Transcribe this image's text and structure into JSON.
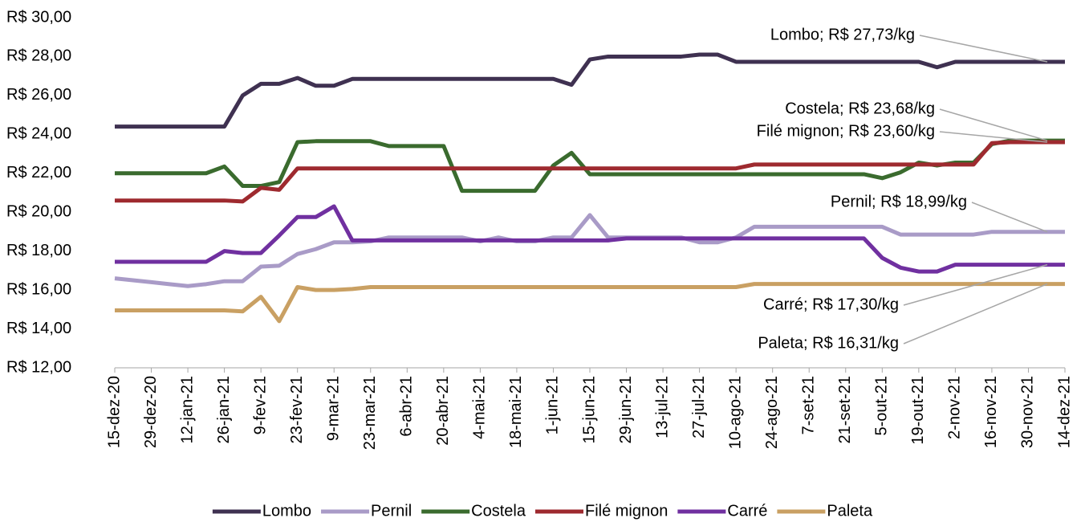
{
  "chart_data": {
    "type": "line",
    "categories": [
      "15-dez-20",
      null,
      "29-dez-20",
      null,
      "12-jan-21",
      null,
      "26-jan-21",
      null,
      "9-fev-21",
      null,
      "23-fev-21",
      null,
      "9-mar-21",
      null,
      "23-mar-21",
      null,
      "6-abr-21",
      null,
      "20-abr-21",
      null,
      "4-mai-21",
      null,
      "18-mai-21",
      null,
      "1-jun-21",
      null,
      "15-jun-21",
      null,
      "29-jun-21",
      null,
      "13-jul-21",
      null,
      "27-jul-21",
      null,
      "10-ago-21",
      null,
      "24-ago-21",
      null,
      "7-set-21",
      null,
      "21-set-21",
      null,
      "5-out-21",
      null,
      "19-out-21",
      null,
      "2-nov-21",
      null,
      "16-nov-21",
      null,
      "30-nov-21",
      null,
      "14-dez-21"
    ],
    "ylim": [
      12,
      30
    ],
    "yticks": [
      {
        "value": 12,
        "label": "R$ 12,00"
      },
      {
        "value": 14,
        "label": "R$ 14,00"
      },
      {
        "value": 16,
        "label": "R$ 16,00"
      },
      {
        "value": 18,
        "label": "R$ 18,00"
      },
      {
        "value": 20,
        "label": "R$ 20,00"
      },
      {
        "value": 22,
        "label": "R$ 22,00"
      },
      {
        "value": 24,
        "label": "R$ 24,00"
      },
      {
        "value": 26,
        "label": "R$ 26,00"
      },
      {
        "value": 28,
        "label": "R$ 28,00"
      },
      {
        "value": 30,
        "label": "R$ 30,00"
      }
    ],
    "grid": false,
    "legend": "bottom",
    "series": [
      {
        "name": "Lombo",
        "color": "#3f3151",
        "values": [
          24.4,
          24.4,
          24.4,
          24.4,
          24.4,
          24.4,
          24.4,
          26.0,
          26.6,
          26.6,
          26.9,
          26.5,
          26.5,
          26.85,
          26.85,
          26.85,
          26.85,
          26.85,
          26.85,
          26.85,
          26.85,
          26.85,
          26.85,
          26.85,
          26.85,
          26.55,
          27.85,
          28.0,
          28.0,
          28.0,
          28.0,
          28.0,
          28.1,
          28.1,
          27.73,
          27.73,
          27.73,
          27.73,
          27.73,
          27.73,
          27.73,
          27.73,
          27.73,
          27.73,
          27.73,
          27.45,
          27.73,
          27.73,
          27.73,
          27.73,
          27.73,
          27.73,
          27.73
        ]
      },
      {
        "name": "Pernil",
        "color": "#a99bc7",
        "values": [
          16.6,
          16.5,
          16.4,
          16.3,
          16.2,
          16.3,
          16.45,
          16.45,
          17.2,
          17.25,
          17.85,
          18.1,
          18.45,
          18.45,
          18.5,
          18.7,
          18.7,
          18.7,
          18.7,
          18.7,
          18.5,
          18.7,
          18.5,
          18.5,
          18.7,
          18.7,
          19.85,
          18.7,
          18.7,
          18.7,
          18.7,
          18.7,
          18.45,
          18.45,
          18.7,
          19.25,
          19.25,
          19.25,
          19.25,
          19.25,
          19.25,
          19.25,
          19.25,
          18.85,
          18.85,
          18.85,
          18.85,
          18.85,
          18.99,
          18.99,
          18.99,
          18.99,
          18.99
        ]
      },
      {
        "name": "Costela",
        "color": "#3a6b2e",
        "values": [
          22.0,
          22.0,
          22.0,
          22.0,
          22.0,
          22.0,
          22.35,
          21.35,
          21.35,
          21.55,
          23.6,
          23.65,
          23.65,
          23.65,
          23.65,
          23.4,
          23.4,
          23.4,
          23.4,
          21.1,
          21.1,
          21.1,
          21.1,
          21.1,
          22.4,
          23.05,
          21.95,
          21.95,
          21.95,
          21.95,
          21.95,
          21.95,
          21.95,
          21.95,
          21.95,
          21.95,
          21.95,
          21.95,
          21.95,
          21.95,
          21.95,
          21.95,
          21.75,
          22.05,
          22.55,
          22.4,
          22.55,
          22.55,
          23.5,
          23.68,
          23.68,
          23.68,
          23.68
        ]
      },
      {
        "name": "Filé mignon",
        "color": "#9e2a2f",
        "values": [
          20.6,
          20.6,
          20.6,
          20.6,
          20.6,
          20.6,
          20.6,
          20.55,
          21.25,
          21.15,
          22.25,
          22.25,
          22.25,
          22.25,
          22.25,
          22.25,
          22.25,
          22.25,
          22.25,
          22.25,
          22.25,
          22.25,
          22.25,
          22.25,
          22.25,
          22.25,
          22.25,
          22.25,
          22.25,
          22.25,
          22.25,
          22.25,
          22.25,
          22.25,
          22.25,
          22.45,
          22.45,
          22.45,
          22.45,
          22.45,
          22.45,
          22.45,
          22.45,
          22.45,
          22.45,
          22.45,
          22.45,
          22.45,
          23.55,
          23.6,
          23.6,
          23.6,
          23.6
        ]
      },
      {
        "name": "Carré",
        "color": "#7030a0",
        "values": [
          17.45,
          17.45,
          17.45,
          17.45,
          17.45,
          17.45,
          18.0,
          17.9,
          17.9,
          18.8,
          19.75,
          19.75,
          20.3,
          18.55,
          18.55,
          18.55,
          18.55,
          18.55,
          18.55,
          18.55,
          18.55,
          18.55,
          18.55,
          18.55,
          18.55,
          18.55,
          18.55,
          18.55,
          18.65,
          18.65,
          18.65,
          18.65,
          18.65,
          18.65,
          18.65,
          18.65,
          18.65,
          18.65,
          18.65,
          18.65,
          18.65,
          18.65,
          17.65,
          17.15,
          16.95,
          16.95,
          17.3,
          17.3,
          17.3,
          17.3,
          17.3,
          17.3,
          17.3
        ]
      },
      {
        "name": "Paleta",
        "color": "#c9a063",
        "values": [
          14.95,
          14.95,
          14.95,
          14.95,
          14.95,
          14.95,
          14.95,
          14.9,
          15.65,
          14.4,
          16.15,
          16.0,
          16.0,
          16.05,
          16.15,
          16.15,
          16.15,
          16.15,
          16.15,
          16.15,
          16.15,
          16.15,
          16.15,
          16.15,
          16.15,
          16.15,
          16.15,
          16.15,
          16.15,
          16.15,
          16.15,
          16.15,
          16.15,
          16.15,
          16.15,
          16.31,
          16.31,
          16.31,
          16.31,
          16.31,
          16.31,
          16.31,
          16.31,
          16.31,
          16.31,
          16.31,
          16.31,
          16.31,
          16.31,
          16.31,
          16.31,
          16.31,
          16.31
        ]
      }
    ],
    "annotations": [
      {
        "text": "Lombo; R$ 27,73/kg",
        "value": 27.73
      },
      {
        "text": "Costela; R$ 23,68/kg",
        "value": 23.68
      },
      {
        "text": "Filé mignon; R$ 23,60/kg",
        "value": 23.6
      },
      {
        "text": "Pernil; R$ 18,99/kg",
        "value": 18.99
      },
      {
        "text": "Carré; R$ 17,30/kg",
        "value": 17.3
      },
      {
        "text": "Paleta; R$ 16,31/kg",
        "value": 16.31
      }
    ]
  }
}
